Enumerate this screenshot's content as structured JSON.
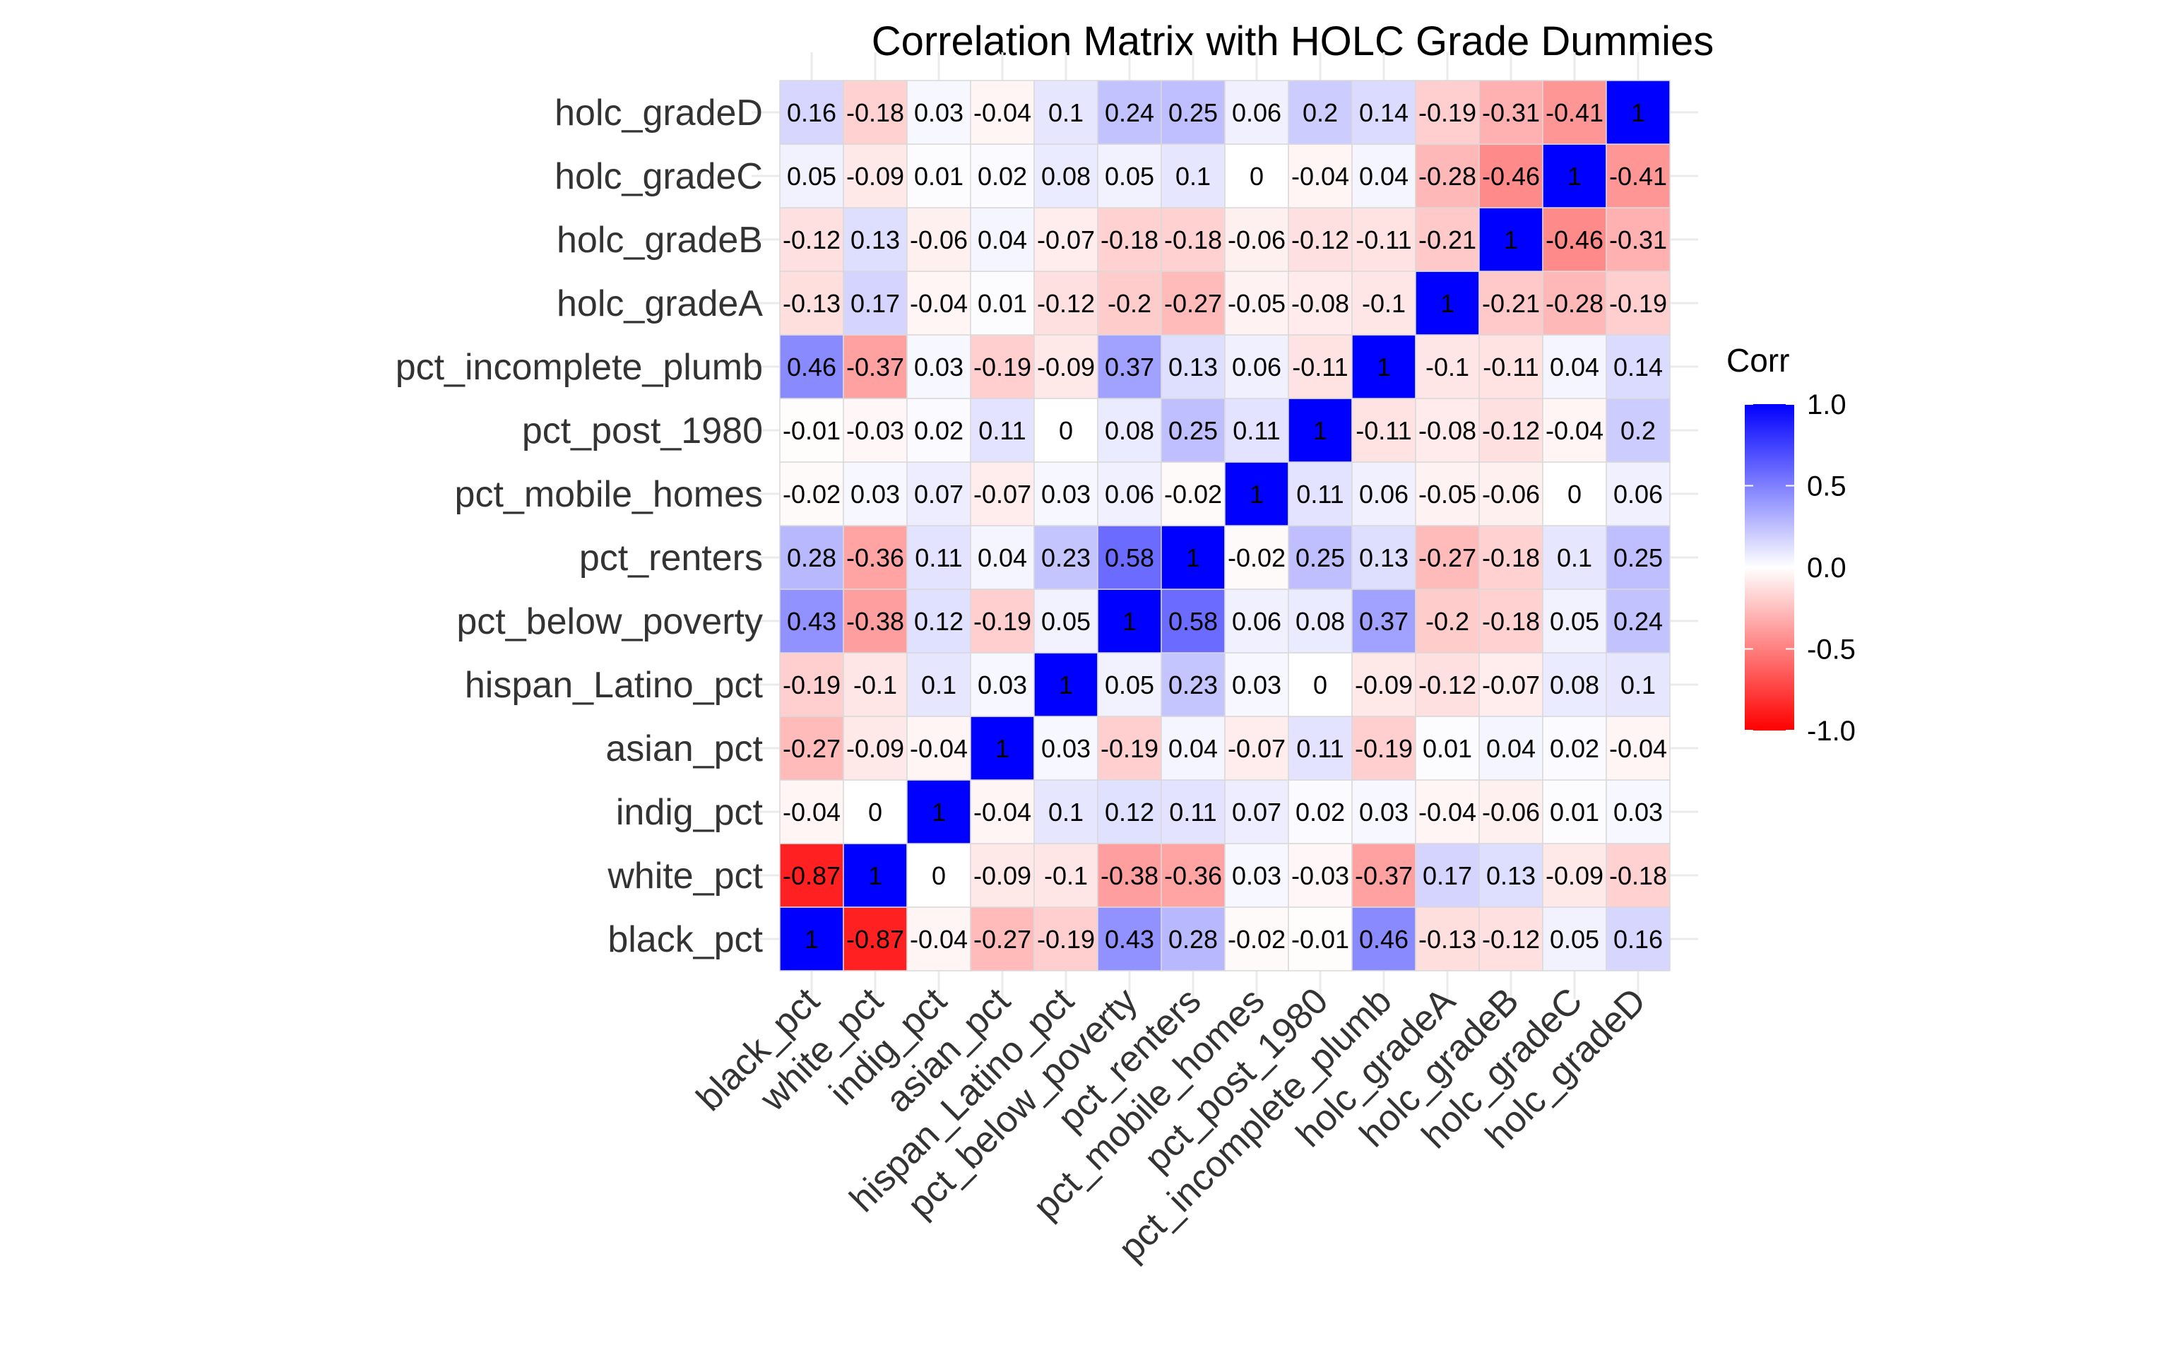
{
  "chart_data": {
    "type": "heatmap",
    "title": "Correlation Matrix with HOLC Grade Dummies",
    "variables": [
      "black_pct",
      "white_pct",
      "indig_pct",
      "asian_pct",
      "hispan_Latino_pct",
      "pct_below_poverty",
      "pct_renters",
      "pct_mobile_homes",
      "pct_post_1980",
      "pct_incomplete_plumb",
      "holc_gradeA",
      "holc_gradeB",
      "holc_gradeC",
      "holc_gradeD"
    ],
    "matrix": [
      [
        1,
        -0.87,
        -0.04,
        -0.27,
        -0.19,
        0.43,
        0.28,
        -0.02,
        -0.01,
        0.46,
        -0.13,
        -0.12,
        0.05,
        0.16
      ],
      [
        -0.87,
        1,
        0,
        -0.09,
        -0.1,
        -0.38,
        -0.36,
        0.03,
        -0.03,
        -0.37,
        0.17,
        0.13,
        -0.09,
        -0.18
      ],
      [
        -0.04,
        0,
        1,
        -0.04,
        0.1,
        0.12,
        0.11,
        0.07,
        0.02,
        0.03,
        -0.04,
        -0.06,
        0.01,
        0.03
      ],
      [
        -0.27,
        -0.09,
        -0.04,
        1,
        0.03,
        -0.19,
        0.04,
        -0.07,
        0.11,
        -0.19,
        0.01,
        0.04,
        0.02,
        -0.04
      ],
      [
        -0.19,
        -0.1,
        0.1,
        0.03,
        1,
        0.05,
        0.23,
        0.03,
        0,
        -0.09,
        -0.12,
        -0.07,
        0.08,
        0.1
      ],
      [
        0.43,
        -0.38,
        0.12,
        -0.19,
        0.05,
        1,
        0.58,
        0.06,
        0.08,
        0.37,
        -0.2,
        -0.18,
        0.05,
        0.24
      ],
      [
        0.28,
        -0.36,
        0.11,
        0.04,
        0.23,
        0.58,
        1,
        -0.02,
        0.25,
        0.13,
        -0.27,
        -0.18,
        0.1,
        0.25
      ],
      [
        -0.02,
        0.03,
        0.07,
        -0.07,
        0.03,
        0.06,
        -0.02,
        1,
        0.11,
        0.06,
        -0.05,
        -0.06,
        0,
        0.06
      ],
      [
        -0.01,
        -0.03,
        0.02,
        0.11,
        0,
        0.08,
        0.25,
        0.11,
        1,
        -0.11,
        -0.08,
        -0.12,
        -0.04,
        0.2
      ],
      [
        0.46,
        -0.37,
        0.03,
        -0.19,
        -0.09,
        0.37,
        0.13,
        0.06,
        -0.11,
        1,
        -0.1,
        -0.11,
        0.04,
        0.14
      ],
      [
        -0.13,
        0.17,
        -0.04,
        0.01,
        -0.12,
        -0.2,
        -0.27,
        -0.05,
        -0.08,
        -0.1,
        1,
        -0.21,
        -0.28,
        -0.19
      ],
      [
        -0.12,
        0.13,
        -0.06,
        0.04,
        -0.07,
        -0.18,
        -0.18,
        -0.06,
        -0.12,
        -0.11,
        -0.21,
        1,
        -0.46,
        -0.31
      ],
      [
        0.05,
        -0.09,
        0.01,
        0.02,
        0.08,
        0.05,
        0.1,
        0,
        -0.04,
        0.04,
        -0.28,
        -0.46,
        1,
        -0.41
      ],
      [
        0.16,
        -0.18,
        0.03,
        -0.04,
        0.1,
        0.24,
        0.25,
        0.06,
        0.2,
        0.14,
        -0.19,
        -0.31,
        -0.41,
        1
      ]
    ],
    "fill_limits": [
      -1,
      1
    ],
    "colors": {
      "low": "#ff0000",
      "mid": "#ffffff",
      "high": "#0000ff",
      "grid": "#ebebeb",
      "cell_border": "#d9d9d9"
    },
    "legend": {
      "title": "Corr",
      "placement": "right",
      "ticks": [
        "1.0",
        "0.5",
        "0.0",
        "-0.5",
        "-1.0"
      ],
      "tick_values": [
        1,
        0.5,
        0,
        -0.5,
        -1
      ]
    },
    "grid": true
  }
}
